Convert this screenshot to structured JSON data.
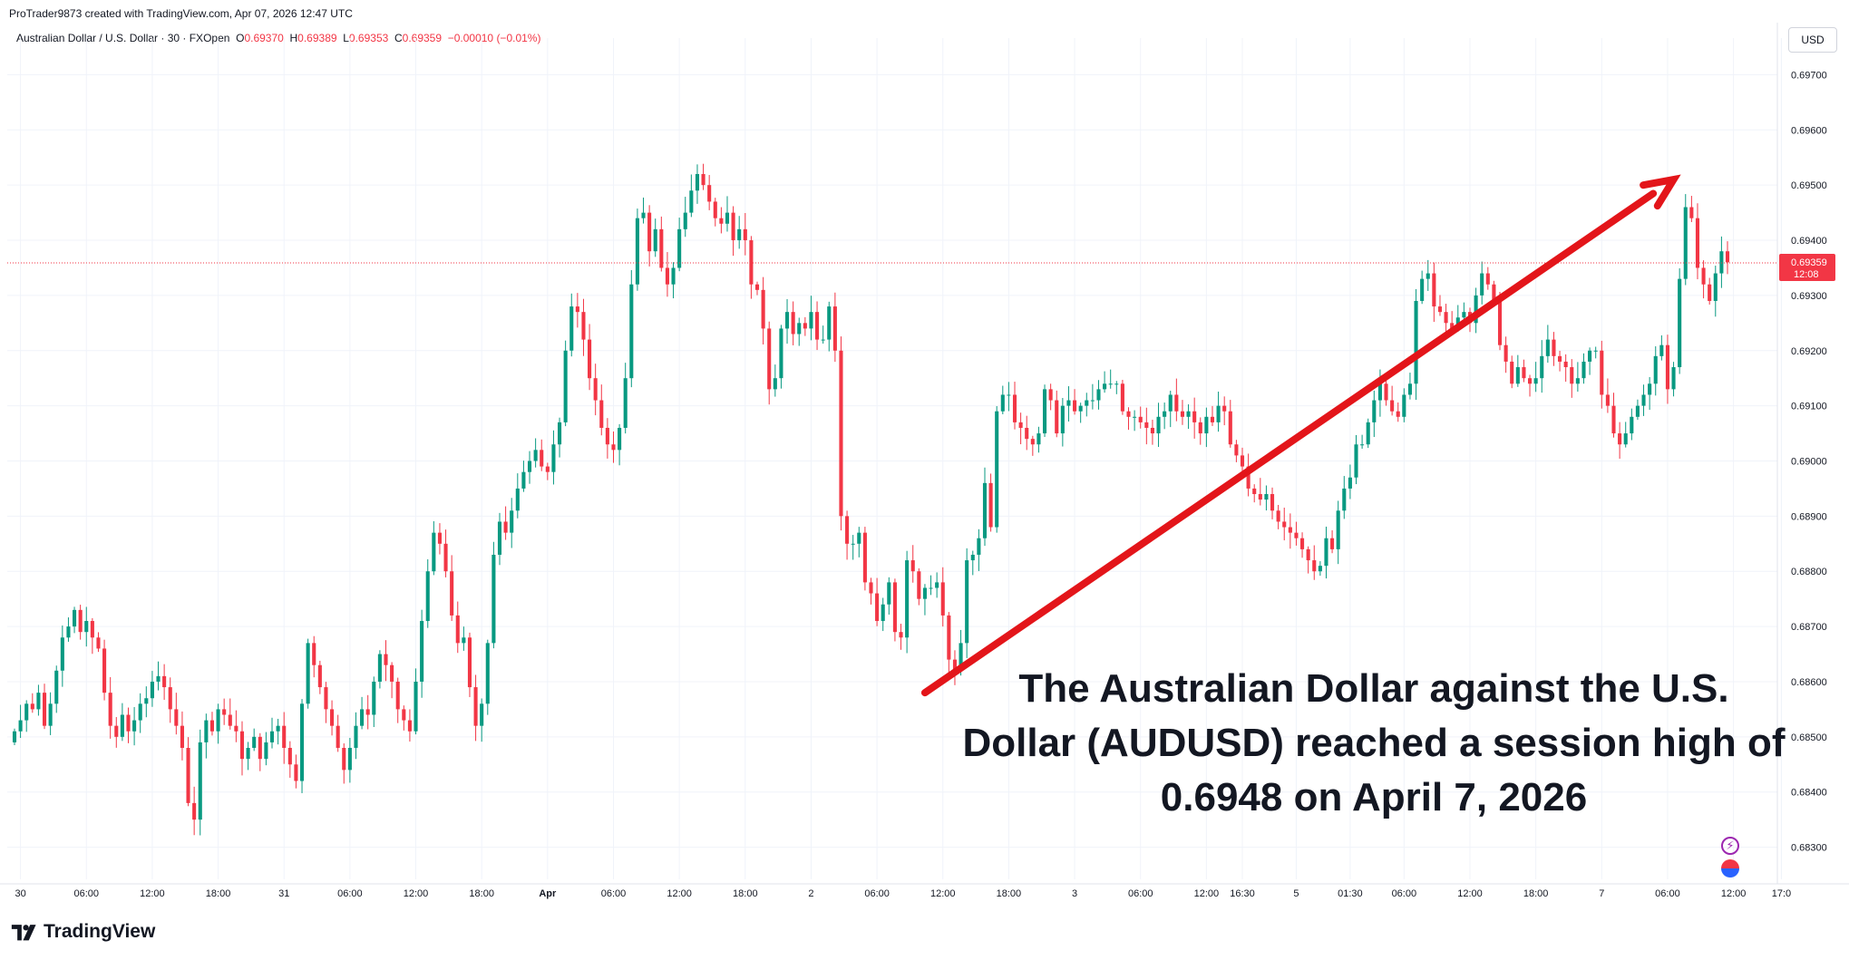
{
  "header": {
    "credit": "ProTrader9873 created with TradingView.com, Apr 07, 2026 12:47 UTC"
  },
  "legend": {
    "symbol": "Australian Dollar / U.S. Dollar · 30 · FXOpen",
    "open_label": "O",
    "open": "0.69370",
    "high_label": "H",
    "high": "0.69389",
    "low_label": "L",
    "low": "0.69353",
    "close_label": "C",
    "close": "0.69359",
    "change": "−0.00010 (−0.01%)"
  },
  "currency": "USD",
  "price_badge": {
    "price": "0.69359",
    "countdown": "12:08",
    "color": "#f23645"
  },
  "colors": {
    "up": "#089981",
    "down": "#f23645",
    "arrow": "#e3151a",
    "grid": "#f0f3fa",
    "axis_text": "#131722"
  },
  "annotation": {
    "lines": [
      "The Australian Dollar against the U.S.",
      "Dollar (AUDUSD) reached a session high of",
      "0.6948 on April 7, 2026"
    ]
  },
  "footer": {
    "brand": "TradingView",
    "logo_icon": "tradingview-logo-icon"
  },
  "icons": {
    "bolt": "lightning-icon",
    "flag": "us-flag-icon"
  },
  "chart_data": {
    "type": "candlestick",
    "symbol": "AUDUSD",
    "timeframe": "30",
    "ylim": [
      0.6825,
      0.6975
    ],
    "y_ticks": [
      "0.69700",
      "0.69600",
      "0.69500",
      "0.69400",
      "0.69300",
      "0.69200",
      "0.69100",
      "0.69000",
      "0.68900",
      "0.68800",
      "0.68700",
      "0.68600",
      "0.68500",
      "0.68400",
      "0.68300"
    ],
    "x_ticks": [
      "30",
      "06:00",
      "12:00",
      "18:00",
      "31",
      "06:00",
      "12:00",
      "18:00",
      "Apr",
      "06:00",
      "12:00",
      "18:00",
      "2",
      "06:00",
      "12:00",
      "18:00",
      "3",
      "06:00",
      "12:00",
      "16:30",
      "5",
      "01:30",
      "06:00",
      "12:00",
      "18:00",
      "7",
      "06:00",
      "12:00",
      "17:0"
    ],
    "x_tick_index": [
      1,
      12,
      23,
      34,
      45,
      56,
      67,
      78,
      89,
      100,
      111,
      122,
      133,
      144,
      155,
      166,
      177,
      188,
      199,
      205,
      214,
      223,
      232,
      243,
      254,
      265,
      276,
      287,
      295
    ],
    "current_price": 0.69359,
    "trend_arrow": {
      "from": {
        "bar": 152,
        "price": 0.6858
      },
      "to": {
        "bar": 277,
        "price": 0.6951
      }
    },
    "close_series": [
      0.6851,
      0.6853,
      0.6856,
      0.6855,
      0.6858,
      0.6852,
      0.6856,
      0.6862,
      0.6868,
      0.687,
      0.6873,
      0.6869,
      0.6871,
      0.6868,
      0.6866,
      0.6858,
      0.6852,
      0.685,
      0.6854,
      0.6851,
      0.6853,
      0.6856,
      0.6857,
      0.686,
      0.6861,
      0.6859,
      0.6855,
      0.6852,
      0.6848,
      0.6838,
      0.6835,
      0.6849,
      0.6853,
      0.6851,
      0.6855,
      0.6854,
      0.6852,
      0.6851,
      0.6846,
      0.6848,
      0.685,
      0.6846,
      0.6849,
      0.6851,
      0.6852,
      0.6848,
      0.6845,
      0.6842,
      0.6856,
      0.6867,
      0.6863,
      0.6859,
      0.6855,
      0.6852,
      0.6848,
      0.6844,
      0.6848,
      0.6852,
      0.6855,
      0.6854,
      0.686,
      0.6865,
      0.6863,
      0.686,
      0.6855,
      0.6853,
      0.6851,
      0.686,
      0.6871,
      0.688,
      0.6887,
      0.6885,
      0.688,
      0.6872,
      0.6867,
      0.6868,
      0.6859,
      0.6852,
      0.6856,
      0.6867,
      0.6883,
      0.6889,
      0.6887,
      0.6891,
      0.6895,
      0.6898,
      0.69,
      0.6902,
      0.6899,
      0.6898,
      0.6903,
      0.6907,
      0.692,
      0.6928,
      0.6927,
      0.6922,
      0.6915,
      0.6911,
      0.6906,
      0.6903,
      0.6902,
      0.6906,
      0.6915,
      0.6932,
      0.6944,
      0.6945,
      0.6938,
      0.6942,
      0.6935,
      0.6932,
      0.6935,
      0.6942,
      0.6945,
      0.6949,
      0.6952,
      0.695,
      0.6947,
      0.6944,
      0.6943,
      0.6945,
      0.694,
      0.6942,
      0.694,
      0.6932,
      0.6931,
      0.6924,
      0.6913,
      0.6915,
      0.6924,
      0.6927,
      0.6923,
      0.6925,
      0.6924,
      0.6927,
      0.6922,
      0.6922,
      0.6928,
      0.692,
      0.689,
      0.6885,
      0.6885,
      0.6887,
      0.6878,
      0.6876,
      0.6871,
      0.6874,
      0.6878,
      0.6869,
      0.6868,
      0.6882,
      0.688,
      0.6875,
      0.6877,
      0.6877,
      0.6878,
      0.6872,
      0.6864,
      0.6862,
      0.6867,
      0.6882,
      0.6883,
      0.6886,
      0.6896,
      0.6888,
      0.6909,
      0.6912,
      0.6912,
      0.6907,
      0.6906,
      0.6904,
      0.6903,
      0.6905,
      0.6913,
      0.6911,
      0.6905,
      0.691,
      0.6911,
      0.6909,
      0.691,
      0.6911,
      0.6911,
      0.6913,
      0.6914,
      0.6914,
      0.6914,
      0.6909,
      0.6908,
      0.6908,
      0.6907,
      0.6906,
      0.6905,
      0.6908,
      0.6909,
      0.6912,
      0.6909,
      0.6908,
      0.6909,
      0.6907,
      0.6905,
      0.6908,
      0.6907,
      0.691,
      0.6909,
      0.6903,
      0.6901,
      0.6899,
      0.6895,
      0.6894,
      0.6893,
      0.6894,
      0.6891,
      0.6889,
      0.6888,
      0.6887,
      0.6886,
      0.6884,
      0.6882,
      0.688,
      0.6881,
      0.6886,
      0.6884,
      0.6891,
      0.6895,
      0.6897,
      0.6903,
      0.6903,
      0.6907,
      0.6911,
      0.6914,
      0.6911,
      0.6909,
      0.6908,
      0.6912,
      0.6914,
      0.6929,
      0.6933,
      0.6934,
      0.6928,
      0.6927,
      0.6925,
      0.6924,
      0.6926,
      0.6927,
      0.6925,
      0.693,
      0.6934,
      0.6932,
      0.6929,
      0.6921,
      0.6918,
      0.6914,
      0.6917,
      0.6915,
      0.6914,
      0.6915,
      0.6919,
      0.6922,
      0.6919,
      0.6918,
      0.6917,
      0.6914,
      0.6915,
      0.6918,
      0.692,
      0.692,
      0.6912,
      0.691,
      0.6905,
      0.6903,
      0.6905,
      0.6908,
      0.691,
      0.6912,
      0.6914,
      0.6919,
      0.6921,
      0.6913,
      0.6917,
      0.6933,
      0.6946,
      0.6944,
      0.6935,
      0.6932,
      0.6929,
      0.6934,
      0.6938,
      0.6936
    ],
    "open": 0.6937,
    "high": 0.69389,
    "low": 0.69353,
    "close": 0.69359
  }
}
